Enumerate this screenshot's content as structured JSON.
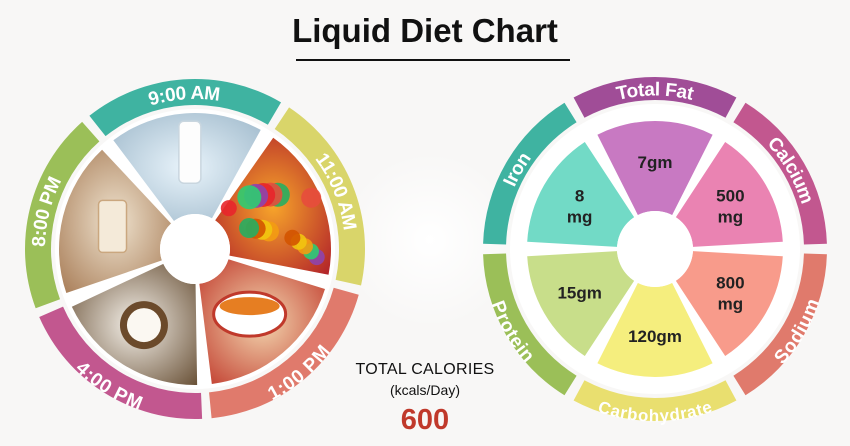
{
  "title": "Liquid Diet Chart",
  "total_calories": {
    "label": "TOTAL CALORIES",
    "unit": "(kcals/Day)",
    "value": "600"
  },
  "meal_schedule": [
    {
      "time": "9:00 AM",
      "color": "#3fb3a1",
      "image": "milk-glass-bottle"
    },
    {
      "time": "11:00 AM",
      "color": "#d9d56a",
      "image": "mixed-fruits"
    },
    {
      "time": "1:00 PM",
      "color": "#e07a6c",
      "image": "soup-bowl"
    },
    {
      "time": "4:00 PM",
      "color": "#c2578f",
      "image": "coconut-water"
    },
    {
      "time": "8:00 PM",
      "color": "#9bbf58",
      "image": "protein-shake"
    }
  ],
  "nutrients": [
    {
      "name": "Total Fat",
      "value": "7gm",
      "outer_color": "#a04d97",
      "inner_color": "#c879c2"
    },
    {
      "name": "Calcium",
      "value": "500 mg",
      "outer_color": "#c2578f",
      "inner_color": "#ea83b2"
    },
    {
      "name": "Sodium",
      "value": "800 mg",
      "outer_color": "#e07a6c",
      "inner_color": "#f89b8b"
    },
    {
      "name": "Carbohydrate",
      "value": "120gm",
      "outer_color": "#e9df6f",
      "inner_color": "#f5ee7e"
    },
    {
      "name": "Protein",
      "value": "15gm",
      "outer_color": "#9bbf58",
      "inner_color": "#c8de8a"
    },
    {
      "name": "Iron",
      "value": "8 mg",
      "outer_color": "#3fb3a1",
      "inner_color": "#72dac6"
    }
  ]
}
